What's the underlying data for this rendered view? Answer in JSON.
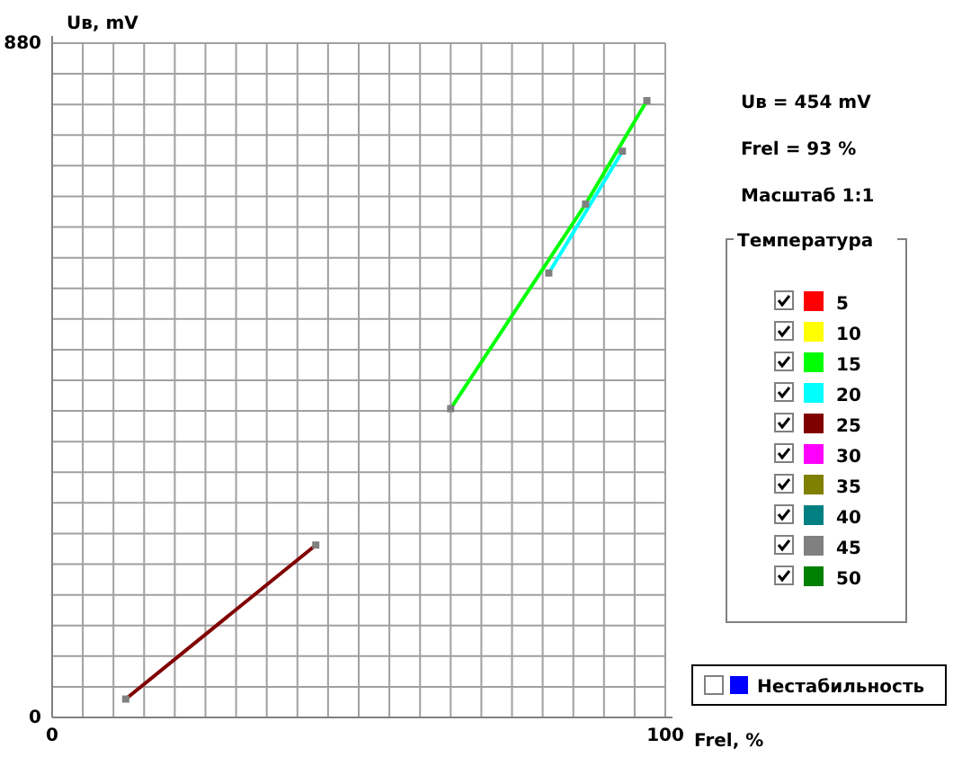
{
  "chart_data": {
    "type": "line",
    "xlabel": "Frel, %",
    "ylabel": "Uв, mV",
    "legend_title": "Температура",
    "legend": "right",
    "grid": true,
    "marker": "square",
    "line_style": "solid",
    "xlim": [
      0,
      100
    ],
    "ylim": [
      0,
      880
    ],
    "xticks": [
      0,
      {
        "value": 5,
        "label": null
      },
      {
        "value": 10,
        "label": null
      },
      {
        "value": 15,
        "label": null
      },
      {
        "value": 20,
        "label": null
      },
      {
        "value": 25,
        "label": null
      },
      {
        "value": 30,
        "label": null
      },
      {
        "value": 35,
        "label": null
      },
      {
        "value": 40,
        "label": null
      },
      {
        "value": 45,
        "label": null
      },
      {
        "value": 50,
        "label": null
      },
      {
        "value": 55,
        "label": null
      },
      {
        "value": 60,
        "label": null
      },
      {
        "value": 65,
        "label": null
      },
      {
        "value": 70,
        "label": null
      },
      {
        "value": 75,
        "label": null
      },
      {
        "value": 80,
        "label": null
      },
      {
        "value": 85,
        "label": null
      },
      {
        "value": 90,
        "label": null
      },
      {
        "value": 95,
        "label": null
      },
      100
    ],
    "yticks": [
      0,
      {
        "value": 40,
        "label": null
      },
      {
        "value": 80,
        "label": null
      },
      {
        "value": 120,
        "label": null
      },
      {
        "value": 160,
        "label": null
      },
      {
        "value": 200,
        "label": null
      },
      {
        "value": 240,
        "label": null
      },
      {
        "value": 280,
        "label": null
      },
      {
        "value": 320,
        "label": null
      },
      {
        "value": 360,
        "label": null
      },
      {
        "value": 400,
        "label": null
      },
      {
        "value": 440,
        "label": null
      },
      {
        "value": 480,
        "label": null
      },
      {
        "value": 520,
        "label": null
      },
      {
        "value": 560,
        "label": null
      },
      {
        "value": 600,
        "label": null
      },
      {
        "value": 640,
        "label": null
      },
      {
        "value": 680,
        "label": null
      },
      {
        "value": 720,
        "label": null
      },
      {
        "value": 760,
        "label": null
      },
      {
        "value": 800,
        "label": null
      },
      {
        "value": 840,
        "label": null
      },
      880
    ],
    "annotations": [
      "Uв = 454  mV",
      "Frel =  93   %",
      "Масштаб   1:1"
    ],
    "series": [
      {
        "name": "5",
        "color": "#ff0000"
      },
      {
        "name": "10",
        "color": "#ffff00"
      },
      {
        "name": "15",
        "color": "#00ff00",
        "x": [
          65,
          87,
          97
        ],
        "values": [
          403,
          670,
          805
        ]
      },
      {
        "name": "20",
        "color": "#00ffff",
        "x": [
          81,
          93
        ],
        "values": [
          580,
          739
        ]
      },
      {
        "name": "25",
        "color": "#800000",
        "x": [
          12,
          43
        ],
        "values": [
          24,
          225
        ]
      },
      {
        "name": "30",
        "color": "#ff00ff"
      },
      {
        "name": "35",
        "color": "#808000"
      },
      {
        "name": "40",
        "color": "#008080"
      },
      {
        "name": "45",
        "color": "#808080"
      },
      {
        "name": "50",
        "color": "#008000"
      },
      {
        "name": "Нестабильность",
        "color": "#0000ff"
      }
    ]
  }
}
